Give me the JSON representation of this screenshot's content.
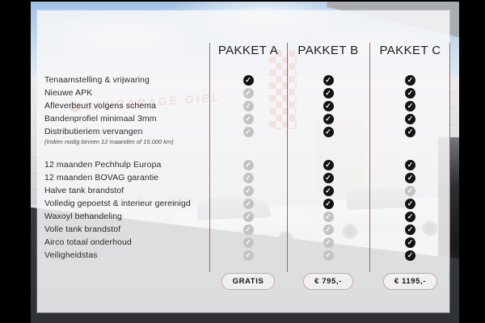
{
  "background": {
    "sign_text": "VANGARAGE GIEL"
  },
  "table": {
    "columns": [
      "PAKKET A",
      "PAKKET B",
      "PAKKET C"
    ],
    "rows": [
      {
        "label": "Tenaamstelling & vrijwaring",
        "section": 1,
        "checks": [
          "on",
          "on",
          "on"
        ]
      },
      {
        "label": "Nieuwe APK",
        "section": 1,
        "checks": [
          "off",
          "on",
          "on"
        ]
      },
      {
        "label": "Afleverbeurt volgens schema",
        "section": 1,
        "checks": [
          "off",
          "on",
          "on"
        ]
      },
      {
        "label": "Bandenprofiel minimaal 3mm",
        "section": 1,
        "checks": [
          "off",
          "on",
          "on"
        ]
      },
      {
        "label": "Distributieriem vervangen",
        "note": "(Indien nodig binnen 12 maanden of 15.000 km)",
        "section": 1,
        "checks": [
          "off",
          "on",
          "on"
        ]
      },
      {
        "label": "12 maanden Pechhulp Europa",
        "section": 2,
        "checks": [
          "off",
          "on",
          "on"
        ]
      },
      {
        "label": "12 maanden BOVAG garantie",
        "section": 2,
        "checks": [
          "off",
          "on",
          "on"
        ]
      },
      {
        "label": "Halve tank brandstof",
        "section": 2,
        "checks": [
          "off",
          "on",
          "off"
        ]
      },
      {
        "label": "Volledig gepoetst & interieur gereinigd",
        "section": 2,
        "checks": [
          "off",
          "on",
          "on"
        ]
      },
      {
        "label": "Waxoyl behandeling",
        "section": 2,
        "checks": [
          "off",
          "off",
          "on"
        ]
      },
      {
        "label": "Volle tank brandstof",
        "section": 2,
        "checks": [
          "off",
          "off",
          "on"
        ]
      },
      {
        "label": "Airco totaal onderhoud",
        "section": 2,
        "checks": [
          "off",
          "off",
          "on"
        ]
      },
      {
        "label": "Veiligheidstas",
        "section": 2,
        "checks": [
          "off",
          "off",
          "on"
        ]
      }
    ],
    "prices": [
      "GRATIS",
      "€ 795,-",
      "€ 1195,-"
    ]
  },
  "icons": {
    "check": "✓"
  },
  "colors": {
    "separator_line": "#a8625c",
    "badge_border": "#cfa6a2",
    "check_included": "#141414",
    "check_excluded": "#c3c3c3",
    "sign_red": "#c0392b"
  },
  "chart_data": {
    "type": "table",
    "columns": [
      "Feature",
      "PAKKET A",
      "PAKKET B",
      "PAKKET C"
    ],
    "rows": [
      {
        "feature": "Tenaamstelling & vrijwaring",
        "pakket_a": true,
        "pakket_b": true,
        "pakket_c": true
      },
      {
        "feature": "Nieuwe APK",
        "pakket_a": false,
        "pakket_b": true,
        "pakket_c": true
      },
      {
        "feature": "Afleverbeurt volgens schema",
        "pakket_a": false,
        "pakket_b": true,
        "pakket_c": true
      },
      {
        "feature": "Bandenprofiel minimaal 3mm",
        "pakket_a": false,
        "pakket_b": true,
        "pakket_c": true
      },
      {
        "feature": "Distributieriem vervangen (Indien nodig binnen 12 maanden of 15.000 km)",
        "pakket_a": false,
        "pakket_b": true,
        "pakket_c": true
      },
      {
        "feature": "12 maanden Pechhulp Europa",
        "pakket_a": false,
        "pakket_b": true,
        "pakket_c": true
      },
      {
        "feature": "12 maanden BOVAG garantie",
        "pakket_a": false,
        "pakket_b": true,
        "pakket_c": true
      },
      {
        "feature": "Halve tank brandstof",
        "pakket_a": false,
        "pakket_b": true,
        "pakket_c": false
      },
      {
        "feature": "Volledig gepoetst & interieur gereinigd",
        "pakket_a": false,
        "pakket_b": true,
        "pakket_c": true
      },
      {
        "feature": "Waxoyl behandeling",
        "pakket_a": false,
        "pakket_b": false,
        "pakket_c": true
      },
      {
        "feature": "Volle tank brandstof",
        "pakket_a": false,
        "pakket_b": false,
        "pakket_c": true
      },
      {
        "feature": "Airco totaal onderhoud",
        "pakket_a": false,
        "pakket_b": false,
        "pakket_c": true
      },
      {
        "feature": "Veiligheidstas",
        "pakket_a": false,
        "pakket_b": false,
        "pakket_c": true
      }
    ],
    "footer": {
      "pakket_a_price": "GRATIS",
      "pakket_b_price": "€ 795,-",
      "pakket_c_price": "€ 1195,-"
    }
  }
}
